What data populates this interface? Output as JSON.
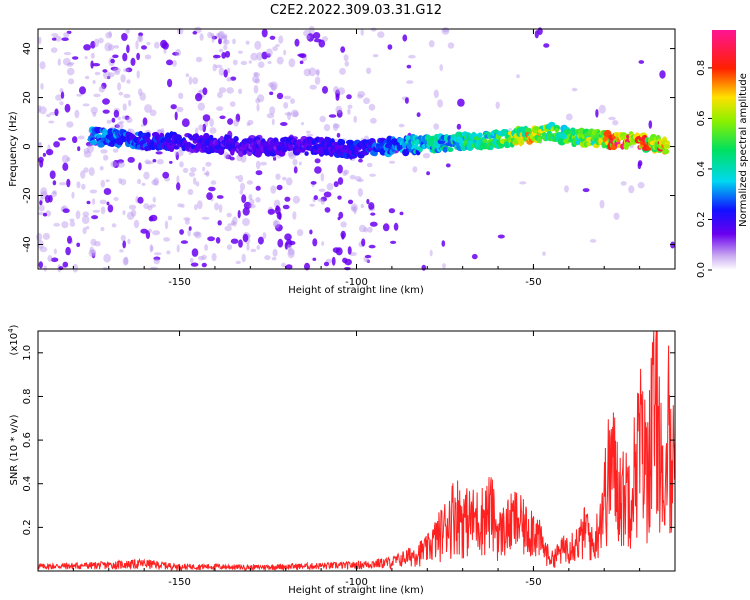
{
  "figure_title": "C2E2.2022.309.03.31.G12",
  "colors": {
    "snr_line": "#ff2020",
    "axis": "#000000"
  },
  "chart_data": [
    {
      "type": "heatmap",
      "xlabel": "Height of straight line (km)",
      "ylabel": "Frequency (Hz)",
      "xlim": [
        -190,
        -10
      ],
      "ylim": [
        -50,
        48
      ],
      "x_ticks": [
        -150,
        -100,
        -50
      ],
      "y_ticks": [
        -40,
        -20,
        0,
        20,
        40
      ],
      "colorbar": {
        "label": "Normalized spectral amplitude",
        "range": [
          0.0,
          0.95
        ],
        "ticks": [
          0.0,
          0.2,
          0.4,
          0.6,
          0.8
        ],
        "colormap": "rainbow (purple → blue → cyan → green → yellow → red → magenta)"
      },
      "main_ridge": {
        "frequency_hz": [
          [
            -172,
            4
          ],
          [
            -160,
            2
          ],
          [
            -150,
            2
          ],
          [
            -140,
            1
          ],
          [
            -130,
            0
          ],
          [
            -120,
            0
          ],
          [
            -110,
            0
          ],
          [
            -100,
            -1
          ],
          [
            -90,
            0
          ],
          [
            -80,
            1
          ],
          [
            -70,
            2
          ],
          [
            -60,
            3
          ],
          [
            -55,
            4
          ],
          [
            -50,
            5
          ],
          [
            -45,
            6
          ],
          [
            -40,
            4
          ],
          [
            -30,
            3
          ],
          [
            -20,
            2
          ],
          [
            -13,
            0
          ]
        ],
        "amplitude": [
          [
            -172,
            0.3
          ],
          [
            -160,
            0.25
          ],
          [
            -150,
            0.2
          ],
          [
            -130,
            0.18
          ],
          [
            -110,
            0.2
          ],
          [
            -100,
            0.22
          ],
          [
            -90,
            0.3
          ],
          [
            -80,
            0.38
          ],
          [
            -70,
            0.42
          ],
          [
            -60,
            0.48
          ],
          [
            -55,
            0.62
          ],
          [
            -50,
            0.65
          ],
          [
            -45,
            0.55
          ],
          [
            -40,
            0.5
          ],
          [
            -30,
            0.6
          ],
          [
            -25,
            0.88
          ],
          [
            -20,
            0.75
          ],
          [
            -15,
            0.6
          ],
          [
            -13,
            0.85
          ]
        ]
      }
    },
    {
      "type": "line",
      "xlabel": "Height of straight line (km)",
      "ylabel": "SNR (10 * v/v)",
      "y_multiplier": "(x10",
      "y_multiplier_exp": "4",
      "y_multiplier_close": ")",
      "xlim": [
        -190,
        -10
      ],
      "ylim": [
        0,
        1.1
      ],
      "x_ticks": [
        -150,
        -100,
        -50
      ],
      "y_ticks": [
        0.2,
        0.4,
        0.6,
        0.8,
        1.0
      ],
      "series": [
        {
          "envelope": [
            [
              -190,
              0.03
            ],
            [
              -170,
              0.04
            ],
            [
              -160,
              0.05
            ],
            [
              -150,
              0.03
            ],
            [
              -140,
              0.03
            ],
            [
              -130,
              0.025
            ],
            [
              -120,
              0.03
            ],
            [
              -110,
              0.035
            ],
            [
              -100,
              0.04
            ],
            [
              -90,
              0.06
            ],
            [
              -85,
              0.1
            ],
            [
              -80,
              0.15
            ],
            [
              -75,
              0.3
            ],
            [
              -72,
              0.42
            ],
            [
              -70,
              0.35
            ],
            [
              -65,
              0.35
            ],
            [
              -62,
              0.42
            ],
            [
              -60,
              0.25
            ],
            [
              -55,
              0.35
            ],
            [
              -52,
              0.28
            ],
            [
              -50,
              0.3
            ],
            [
              -47,
              0.15
            ],
            [
              -45,
              0.08
            ],
            [
              -40,
              0.18
            ],
            [
              -37,
              0.2
            ],
            [
              -35,
              0.3
            ],
            [
              -33,
              0.15
            ],
            [
              -30,
              0.5
            ],
            [
              -28,
              0.75
            ],
            [
              -25,
              0.5
            ],
            [
              -22,
              0.6
            ],
            [
              -20,
              0.9
            ],
            [
              -18,
              0.7
            ],
            [
              -16,
              1.08
            ],
            [
              -14,
              0.95
            ],
            [
              -13,
              0.2
            ],
            [
              -12,
              1.0
            ],
            [
              -10,
              0.7
            ]
          ]
        }
      ]
    }
  ]
}
